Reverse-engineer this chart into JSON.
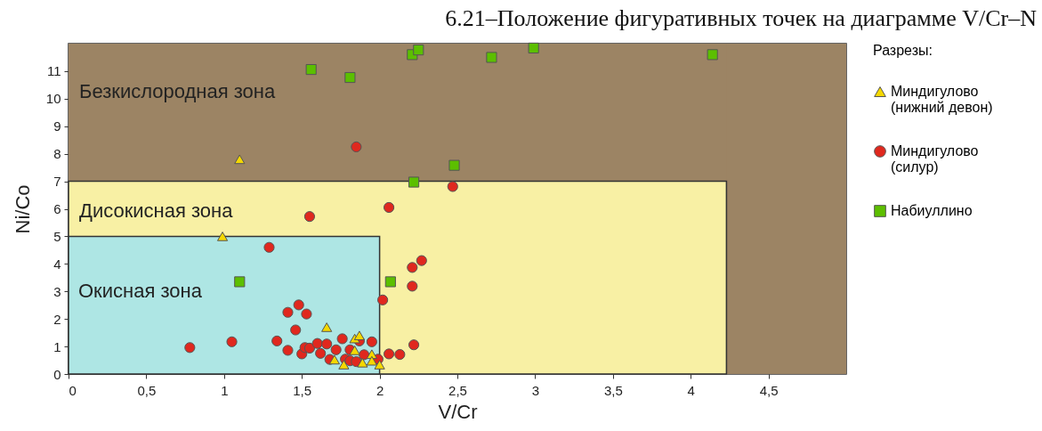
{
  "chart_data": {
    "type": "scatter",
    "title": "6.21–Положение фигуративных точек на диаграмме V/Cr–N",
    "xlabel": "V/Cr",
    "ylabel": "Ni/Co",
    "legend_title": "Разрезы:",
    "xlim": [
      0,
      5
    ],
    "ylim": [
      0,
      12
    ],
    "xticks": [
      0,
      {
        "value": 0.5,
        "label": "0,5"
      },
      1,
      {
        "value": 1.5,
        "label": "1,5"
      },
      2,
      {
        "value": 2.5,
        "label": "2,5"
      },
      3,
      {
        "value": 3.5,
        "label": "3,5"
      },
      4,
      {
        "value": 4.5,
        "label": "4,5"
      }
    ],
    "yticks": [
      0,
      1,
      2,
      3,
      4,
      5,
      6,
      7,
      8,
      9,
      10,
      11
    ],
    "grid": false,
    "legend": "right",
    "bands": [
      {
        "axis": "y",
        "from": 7,
        "to": 12,
        "color": "#9c8464",
        "label": "Безкислородная зона"
      },
      {
        "axis": "x",
        "from": 4.23,
        "to": 5,
        "color": "#9c8464"
      }
    ],
    "series": [
      {
        "type": "area",
        "color": "#f8f0a4",
        "x": [
          0,
          4.23
        ],
        "values": [
          7,
          7
        ]
      },
      {
        "type": "area",
        "color": "#aee6e4",
        "x": [
          0,
          2
        ],
        "values": [
          5,
          5
        ]
      },
      {
        "name": "Миндигулово (нижний девон)",
        "color": "#f5d800",
        "marker": "triangle",
        "x": [
          1.1,
          0.99,
          1.66,
          1.84,
          1.87,
          1.84,
          1.71,
          1.77,
          1.89,
          1.95,
          1.95,
          2.0
        ],
        "values": [
          7.8,
          5.0,
          1.7,
          1.29,
          1.4,
          0.86,
          0.52,
          0.34,
          0.41,
          0.72,
          0.48,
          0.34
        ]
      },
      {
        "name": "Миндигулово (силур)",
        "color": "#e0281e",
        "marker": "circle",
        "x": [
          0.78,
          1.05,
          1.29,
          1.34,
          1.41,
          1.41,
          1.48,
          1.53,
          1.46,
          1.5,
          1.52,
          1.55,
          1.6,
          1.62,
          1.66,
          1.72,
          1.68,
          1.76,
          1.78,
          1.81,
          1.81,
          1.85,
          1.87,
          1.9,
          1.95,
          1.99,
          2.02,
          2.06,
          2.13,
          2.21,
          2.27,
          2.21,
          2.22,
          1.55,
          2.06,
          2.47,
          1.85
        ],
        "values": [
          0.96,
          1.17,
          4.6,
          1.2,
          2.24,
          0.86,
          2.51,
          2.18,
          1.6,
          0.73,
          0.96,
          0.94,
          1.11,
          0.75,
          1.09,
          0.88,
          0.53,
          1.28,
          0.54,
          0.88,
          0.48,
          0.45,
          1.2,
          0.7,
          1.17,
          0.54,
          2.69,
          0.73,
          0.71,
          3.87,
          4.12,
          3.19,
          1.06,
          5.72,
          6.05,
          6.81,
          8.25
        ]
      },
      {
        "name": "Набиуллино",
        "color": "#5cbf00",
        "marker": "square",
        "x": [
          1.56,
          1.81,
          2.21,
          2.25,
          2.72,
          2.99,
          4.14,
          2.48,
          2.22,
          1.1,
          2.07
        ],
        "values": [
          11.06,
          10.77,
          11.6,
          11.77,
          11.5,
          11.84,
          11.6,
          7.58,
          6.97,
          3.35,
          3.35
        ]
      }
    ],
    "annotations": [
      "Дисокисная зона",
      "Окисная зона"
    ]
  }
}
